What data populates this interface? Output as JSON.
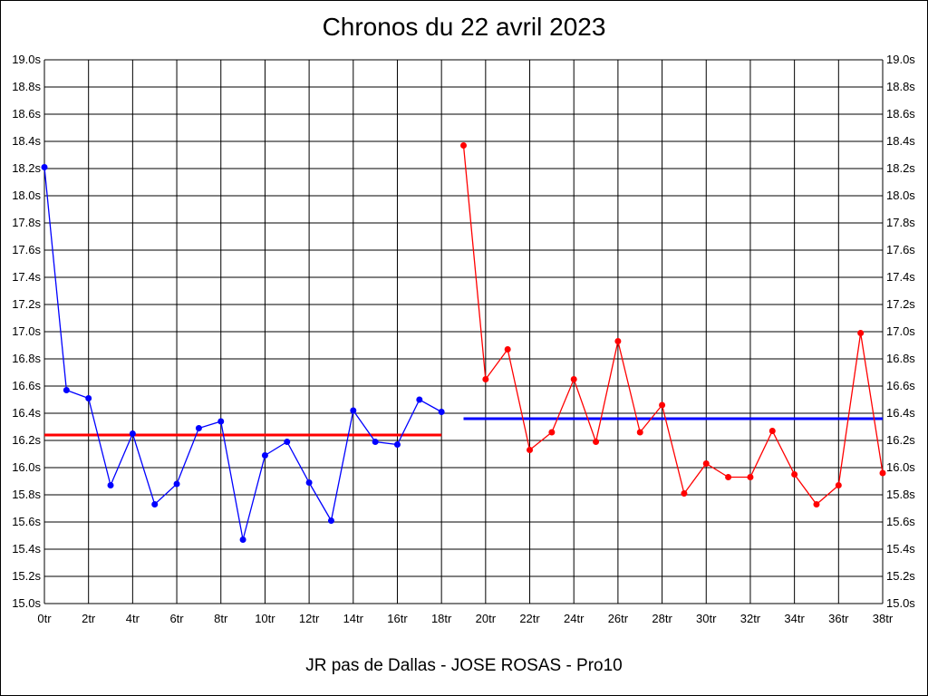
{
  "chart_data": {
    "type": "line",
    "title": "Chronos du 22 avril 2023",
    "xlabel": "JR pas de Dallas - JOSE ROSAS - Pro10",
    "ylabel": "",
    "xlim": [
      0,
      38
    ],
    "ylim": [
      15.0,
      19.0
    ],
    "x_tick_step": 2,
    "y_tick_step": 0.2,
    "x_tick_suffix": "tr",
    "y_tick_suffix": "s",
    "grid": true,
    "series": [
      {
        "color": "#0000ff",
        "x": [
          0,
          1,
          2,
          3,
          4,
          5,
          6,
          7,
          8,
          9,
          10,
          11,
          12,
          13,
          14,
          15,
          16,
          17,
          18
        ],
        "values": [
          18.21,
          16.57,
          16.51,
          15.87,
          16.25,
          15.73,
          15.88,
          16.29,
          16.34,
          15.47,
          16.09,
          16.19,
          15.89,
          15.61,
          16.42,
          16.19,
          16.17,
          16.5,
          16.41
        ]
      },
      {
        "color": "#ff0000",
        "x": [
          19,
          20,
          21,
          22,
          23,
          24,
          25,
          26,
          27,
          28,
          29,
          30,
          31,
          32,
          33,
          34,
          35,
          36,
          37,
          38
        ],
        "values": [
          18.37,
          16.65,
          16.87,
          16.13,
          16.26,
          16.65,
          16.19,
          16.93,
          16.26,
          16.46,
          15.81,
          16.03,
          15.93,
          15.93,
          16.27,
          15.95,
          15.73,
          15.87,
          16.99,
          15.96
        ]
      }
    ],
    "reference_lines": [
      {
        "color": "#ff0000",
        "x": [
          0,
          18
        ],
        "value": 16.24
      },
      {
        "color": "#0000ff",
        "x": [
          19,
          38
        ],
        "value": 16.36
      }
    ]
  }
}
